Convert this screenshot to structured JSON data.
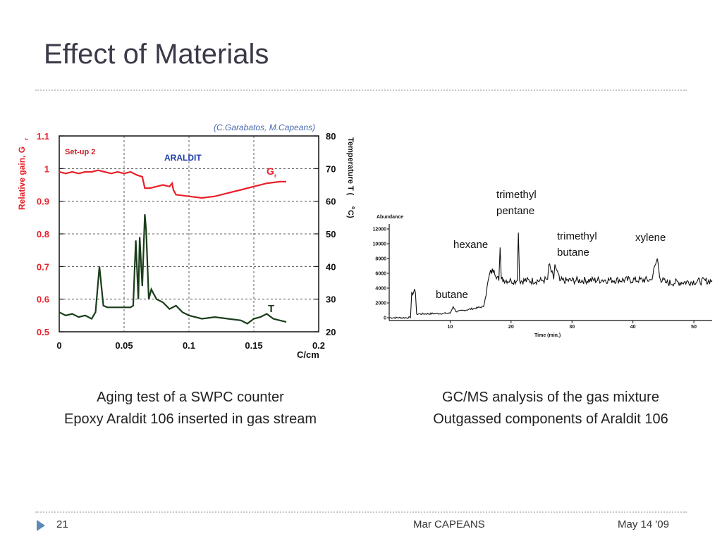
{
  "slide": {
    "title": "Effect of Materials",
    "credit": "(C.Garabatos, M.Capeans)",
    "caption_left": [
      "Aging test of a SWPC counter",
      "Epoxy Araldit 106 inserted in gas stream"
    ],
    "caption_right": [
      "GC/MS analysis of the gas mixture",
      "Outgassed components of Araldit 106"
    ],
    "footer": {
      "page": "21",
      "author": "Mar CAPEANS",
      "date": "May 14 '09"
    }
  },
  "colors": {
    "title": "#3a3a48",
    "red_series": "#e8202a",
    "green_series": "#1a3d1a",
    "accent": "#5a8ab8",
    "credit": "#4a68b0",
    "araldit_label": "#1f3fa8"
  },
  "chart_data": [
    {
      "type": "line",
      "setup_label": "Set-up 2",
      "material_label": "ARALDIT",
      "xlabel": "C/cm",
      "ylabel": "Relative gain, G",
      "ylabel_sub": "r",
      "y2label": "Temperature T (",
      "y2label_unit": "C)",
      "x_ticks": [
        "0",
        "0.05",
        "0.1",
        "0.15",
        "0.2"
      ],
      "y_ticks": [
        "0.5",
        "0.6",
        "0.7",
        "0.8",
        "0.9",
        "1",
        "1.1"
      ],
      "y2_ticks": [
        "20",
        "30",
        "40",
        "50",
        "60",
        "70",
        "80"
      ],
      "xlim": [
        0,
        0.2
      ],
      "ylim": [
        0.5,
        1.1
      ],
      "y2lim": [
        20,
        80
      ],
      "grid": true,
      "series": [
        {
          "name": "G",
          "name_sub": "r",
          "axis": "left",
          "x": [
            0,
            0.005,
            0.01,
            0.015,
            0.02,
            0.025,
            0.03,
            0.035,
            0.04,
            0.045,
            0.05,
            0.055,
            0.06,
            0.064,
            0.066,
            0.07,
            0.075,
            0.08,
            0.085,
            0.087,
            0.088,
            0.09,
            0.1,
            0.11,
            0.12,
            0.13,
            0.14,
            0.15,
            0.16,
            0.17,
            0.175
          ],
          "values": [
            0.99,
            0.985,
            0.99,
            0.985,
            0.99,
            0.99,
            0.995,
            0.99,
            0.985,
            0.99,
            0.985,
            0.99,
            0.98,
            0.975,
            0.94,
            0.94,
            0.945,
            0.95,
            0.945,
            0.955,
            0.935,
            0.92,
            0.915,
            0.91,
            0.915,
            0.925,
            0.935,
            0.945,
            0.955,
            0.96,
            0.96
          ]
        },
        {
          "name": "T",
          "axis": "right",
          "x": [
            0,
            0.005,
            0.01,
            0.015,
            0.02,
            0.025,
            0.028,
            0.031,
            0.034,
            0.037,
            0.04,
            0.045,
            0.05,
            0.055,
            0.057,
            0.059,
            0.061,
            0.062,
            0.064,
            0.066,
            0.067,
            0.069,
            0.071,
            0.075,
            0.08,
            0.085,
            0.09,
            0.095,
            0.1,
            0.11,
            0.12,
            0.13,
            0.14,
            0.145,
            0.15,
            0.155,
            0.16,
            0.165,
            0.17,
            0.175
          ],
          "values": [
            26,
            25,
            25.5,
            24.5,
            25,
            24,
            26,
            40,
            28,
            27.5,
            27.5,
            27.5,
            27.5,
            27.5,
            28,
            48,
            30,
            49,
            34,
            56,
            51,
            30,
            33,
            30,
            29,
            27,
            28,
            26,
            25,
            24,
            24.5,
            24,
            23.5,
            22.5,
            24,
            24.5,
            25.5,
            24,
            23.5,
            23
          ]
        }
      ],
      "annotations": [
        "Set-up 2",
        "ARALDIT"
      ]
    },
    {
      "type": "line",
      "ylabel": "Abundance",
      "xlabel": "Time (min.)",
      "x_ticks": [
        "10",
        "20",
        "30",
        "40",
        "50"
      ],
      "y_ticks": [
        "0",
        "2000",
        "4000",
        "6000",
        "8000",
        "10000",
        "12000"
      ],
      "xlim": [
        0,
        53
      ],
      "ylim": [
        0,
        12000
      ],
      "series": [
        {
          "name": "",
          "x": [
            0,
            3.5,
            3.7,
            4.3,
            4.5,
            10,
            10.5,
            11,
            15.5,
            16.5,
            17.2,
            18,
            18.2,
            18.4,
            20,
            21,
            21.2,
            21.4,
            25,
            26,
            26.2,
            27,
            27.2,
            28,
            35,
            43,
            44,
            44.5,
            45.5,
            53
          ],
          "values": [
            0,
            0,
            3500,
            3400,
            500,
            600,
            1500,
            800,
            1500,
            6000,
            6500,
            5000,
            9500,
            5200,
            5000,
            5000,
            11500,
            5000,
            5000,
            5200,
            7200,
            5200,
            7200,
            5000,
            5100,
            5100,
            8000,
            5200,
            4700,
            5000
          ]
        }
      ],
      "annotations": [
        "butane",
        "hexane",
        "trimethyl",
        "pentane",
        "trimethyl",
        "butane",
        "xylene"
      ]
    }
  ]
}
